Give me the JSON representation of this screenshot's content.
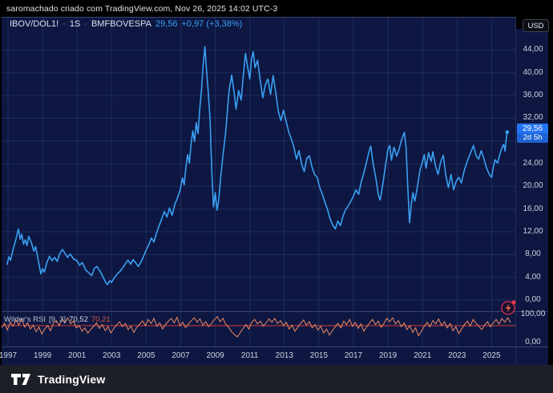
{
  "header": {
    "attribution": "saromachado criado com TradingView.com, Nov 26, 2025 14:02 UTC-3"
  },
  "legend": {
    "symbol": "IBOV/DOL1!",
    "separator": "·",
    "interval": "1S",
    "exchange": "BMFBOVESPA",
    "price": "29,56",
    "change": "+0,97 (+3,38%)"
  },
  "price_scale": {
    "currency": "USD",
    "last_price": "29,56",
    "countdown": "2d 5h"
  },
  "rsi_legend": {
    "title": "Wilder's RSI",
    "params": "[9, 3]",
    "value_main": "70,52",
    "value_signal": "70,21"
  },
  "footer": {
    "brand": "TradingView"
  },
  "colors": {
    "chart_bg": "#0d1742",
    "grid": "#1f2d5f",
    "border": "#3a4368",
    "line_blue": "#3aa0f2",
    "price_chip_blue": "#2574f4",
    "rsi_orange": "#ef8a63",
    "level_red": "#d93a3a"
  },
  "chart_data": {
    "type": "line",
    "title": "IBOV/DOL1! · 1S · BMFBOVESPA",
    "x_ticks": [
      {
        "year": 1997,
        "label": "1997"
      },
      {
        "year": 1999,
        "label": "1999"
      },
      {
        "year": 2001,
        "label": "2001"
      },
      {
        "year": 2003,
        "label": "2003"
      },
      {
        "year": 2005,
        "label": "2005"
      },
      {
        "year": 2007,
        "label": "2007"
      },
      {
        "year": 2009,
        "label": "2009"
      },
      {
        "year": 2011,
        "label": "2011"
      },
      {
        "year": 2013,
        "label": "2013"
      },
      {
        "year": 2015,
        "label": "2015"
      },
      {
        "year": 2017,
        "label": "2017"
      },
      {
        "year": 2019,
        "label": "2019"
      },
      {
        "year": 2021,
        "label": "2021"
      },
      {
        "year": 2023,
        "label": "2023"
      },
      {
        "year": 2025,
        "label": "2025"
      }
    ],
    "y_grid_values": [
      0,
      4,
      8,
      12,
      16,
      20,
      24,
      28,
      32,
      36,
      40,
      44
    ],
    "y_ticks": [
      {
        "value": 44,
        "label": "44,00"
      },
      {
        "value": 40,
        "label": "40,00"
      },
      {
        "value": 36,
        "label": "36,00"
      },
      {
        "value": 32,
        "label": "32,00"
      },
      {
        "value": 24,
        "label": "24,00"
      },
      {
        "value": 20,
        "label": "20,00"
      },
      {
        "value": 16,
        "label": "16,00"
      },
      {
        "value": 12,
        "label": "12,00"
      },
      {
        "value": 8,
        "label": "8,00"
      },
      {
        "value": 4,
        "label": "4,00"
      },
      {
        "value": 0,
        "label": "0,00"
      }
    ],
    "last_point": {
      "year": 2025.9,
      "value": 29.56
    },
    "series": [
      {
        "name": "IBOV/DOL1!",
        "color": "#3aa0f2",
        "points": [
          [
            1996.95,
            6.3
          ],
          [
            1997.05,
            7.6
          ],
          [
            1997.15,
            7.0
          ],
          [
            1997.3,
            9.0
          ],
          [
            1997.45,
            10.6
          ],
          [
            1997.6,
            12.5
          ],
          [
            1997.7,
            10.7
          ],
          [
            1997.8,
            11.6
          ],
          [
            1997.9,
            9.8
          ],
          [
            1998.0,
            10.6
          ],
          [
            1998.1,
            9.6
          ],
          [
            1998.2,
            11.2
          ],
          [
            1998.35,
            10.1
          ],
          [
            1998.5,
            8.6
          ],
          [
            1998.6,
            9.4
          ],
          [
            1998.75,
            7.0
          ],
          [
            1998.9,
            4.6
          ],
          [
            1999.0,
            5.5
          ],
          [
            1999.1,
            4.9
          ],
          [
            1999.25,
            6.6
          ],
          [
            1999.4,
            7.7
          ],
          [
            1999.55,
            6.9
          ],
          [
            1999.7,
            7.5
          ],
          [
            1999.85,
            6.8
          ],
          [
            2000.0,
            8.2
          ],
          [
            2000.15,
            8.9
          ],
          [
            2000.3,
            8.2
          ],
          [
            2000.45,
            7.5
          ],
          [
            2000.6,
            8.1
          ],
          [
            2000.8,
            7.2
          ],
          [
            2001.0,
            6.9
          ],
          [
            2001.15,
            6.1
          ],
          [
            2001.3,
            6.6
          ],
          [
            2001.5,
            5.3
          ],
          [
            2001.7,
            4.7
          ],
          [
            2001.85,
            4.3
          ],
          [
            2002.0,
            5.6
          ],
          [
            2002.15,
            5.9
          ],
          [
            2002.3,
            5.2
          ],
          [
            2002.45,
            4.4
          ],
          [
            2002.6,
            3.4
          ],
          [
            2002.75,
            2.7
          ],
          [
            2002.9,
            3.4
          ],
          [
            2003.0,
            3.1
          ],
          [
            2003.15,
            3.9
          ],
          [
            2003.3,
            4.5
          ],
          [
            2003.5,
            5.1
          ],
          [
            2003.65,
            5.7
          ],
          [
            2003.8,
            6.4
          ],
          [
            2003.95,
            7.0
          ],
          [
            2004.1,
            6.3
          ],
          [
            2004.25,
            7.1
          ],
          [
            2004.4,
            6.5
          ],
          [
            2004.55,
            5.9
          ],
          [
            2004.7,
            6.7
          ],
          [
            2004.85,
            7.7
          ],
          [
            2005.0,
            8.8
          ],
          [
            2005.15,
            9.7
          ],
          [
            2005.3,
            10.9
          ],
          [
            2005.45,
            10.2
          ],
          [
            2005.6,
            11.8
          ],
          [
            2005.75,
            13.1
          ],
          [
            2005.9,
            14.3
          ],
          [
            2006.05,
            15.6
          ],
          [
            2006.2,
            14.6
          ],
          [
            2006.35,
            16.2
          ],
          [
            2006.5,
            14.9
          ],
          [
            2006.65,
            16.8
          ],
          [
            2006.8,
            17.9
          ],
          [
            2006.95,
            19.2
          ],
          [
            2007.1,
            21.5
          ],
          [
            2007.2,
            20.3
          ],
          [
            2007.3,
            23.4
          ],
          [
            2007.4,
            25.6
          ],
          [
            2007.5,
            24.1
          ],
          [
            2007.6,
            27.5
          ],
          [
            2007.7,
            29.8
          ],
          [
            2007.8,
            27.9
          ],
          [
            2007.9,
            31.2
          ],
          [
            2008.0,
            29.3
          ],
          [
            2008.1,
            33.6
          ],
          [
            2008.2,
            36.9
          ],
          [
            2008.3,
            41.5
          ],
          [
            2008.4,
            44.6
          ],
          [
            2008.5,
            40.2
          ],
          [
            2008.6,
            36.4
          ],
          [
            2008.7,
            31.8
          ],
          [
            2008.8,
            22.5
          ],
          [
            2008.9,
            16.4
          ],
          [
            2009.0,
            18.9
          ],
          [
            2009.1,
            15.8
          ],
          [
            2009.2,
            17.6
          ],
          [
            2009.3,
            21.3
          ],
          [
            2009.45,
            25.6
          ],
          [
            2009.6,
            29.4
          ],
          [
            2009.7,
            33.2
          ],
          [
            2009.8,
            36.8
          ],
          [
            2009.95,
            39.6
          ],
          [
            2010.1,
            36.3
          ],
          [
            2010.2,
            33.6
          ],
          [
            2010.35,
            36.9
          ],
          [
            2010.5,
            35.2
          ],
          [
            2010.6,
            38.8
          ],
          [
            2010.75,
            43.4
          ],
          [
            2010.9,
            40.6
          ],
          [
            2011.0,
            38.9
          ],
          [
            2011.1,
            42.6
          ],
          [
            2011.2,
            43.7
          ],
          [
            2011.3,
            40.9
          ],
          [
            2011.45,
            42.2
          ],
          [
            2011.6,
            38.8
          ],
          [
            2011.75,
            35.6
          ],
          [
            2011.9,
            37.9
          ],
          [
            2012.05,
            38.9
          ],
          [
            2012.2,
            36.2
          ],
          [
            2012.35,
            39.5
          ],
          [
            2012.5,
            36.6
          ],
          [
            2012.65,
            33.2
          ],
          [
            2012.8,
            31.6
          ],
          [
            2012.95,
            33.4
          ],
          [
            2013.1,
            31.5
          ],
          [
            2013.25,
            29.6
          ],
          [
            2013.4,
            28.4
          ],
          [
            2013.55,
            26.9
          ],
          [
            2013.7,
            24.8
          ],
          [
            2013.85,
            26.3
          ],
          [
            2014.0,
            23.9
          ],
          [
            2014.15,
            22.6
          ],
          [
            2014.3,
            24.9
          ],
          [
            2014.45,
            25.4
          ],
          [
            2014.6,
            23.4
          ],
          [
            2014.75,
            22.1
          ],
          [
            2014.9,
            21.6
          ],
          [
            2015.05,
            19.8
          ],
          [
            2015.2,
            18.6
          ],
          [
            2015.35,
            17.2
          ],
          [
            2015.5,
            15.9
          ],
          [
            2015.65,
            14.3
          ],
          [
            2015.8,
            13.2
          ],
          [
            2015.95,
            12.5
          ],
          [
            2016.1,
            13.9
          ],
          [
            2016.25,
            13.1
          ],
          [
            2016.4,
            14.8
          ],
          [
            2016.55,
            15.9
          ],
          [
            2016.7,
            16.6
          ],
          [
            2016.85,
            17.4
          ],
          [
            2017.0,
            18.3
          ],
          [
            2017.15,
            19.4
          ],
          [
            2017.3,
            18.6
          ],
          [
            2017.45,
            20.8
          ],
          [
            2017.6,
            22.3
          ],
          [
            2017.75,
            24.2
          ],
          [
            2017.9,
            26.1
          ],
          [
            2018.0,
            27.1
          ],
          [
            2018.15,
            23.8
          ],
          [
            2018.3,
            21.4
          ],
          [
            2018.45,
            18.4
          ],
          [
            2018.55,
            17.6
          ],
          [
            2018.7,
            20.3
          ],
          [
            2018.85,
            23.6
          ],
          [
            2019.0,
            26.6
          ],
          [
            2019.1,
            27.2
          ],
          [
            2019.2,
            24.6
          ],
          [
            2019.35,
            26.9
          ],
          [
            2019.5,
            25.3
          ],
          [
            2019.65,
            26.6
          ],
          [
            2019.8,
            28.3
          ],
          [
            2019.95,
            29.5
          ],
          [
            2020.05,
            26.8
          ],
          [
            2020.15,
            19.6
          ],
          [
            2020.25,
            13.6
          ],
          [
            2020.35,
            16.9
          ],
          [
            2020.45,
            18.9
          ],
          [
            2020.55,
            17.4
          ],
          [
            2020.7,
            19.8
          ],
          [
            2020.85,
            22.9
          ],
          [
            2021.0,
            24.3
          ],
          [
            2021.1,
            25.6
          ],
          [
            2021.2,
            23.2
          ],
          [
            2021.35,
            25.9
          ],
          [
            2021.5,
            24.4
          ],
          [
            2021.6,
            26.1
          ],
          [
            2021.75,
            23.6
          ],
          [
            2021.9,
            22.1
          ],
          [
            2022.05,
            24.3
          ],
          [
            2022.2,
            25.5
          ],
          [
            2022.35,
            21.9
          ],
          [
            2022.5,
            19.8
          ],
          [
            2022.65,
            22.1
          ],
          [
            2022.8,
            19.4
          ],
          [
            2022.95,
            20.9
          ],
          [
            2023.1,
            21.6
          ],
          [
            2023.25,
            20.6
          ],
          [
            2023.4,
            22.6
          ],
          [
            2023.55,
            24.1
          ],
          [
            2023.7,
            25.3
          ],
          [
            2023.85,
            26.4
          ],
          [
            2023.95,
            27.2
          ],
          [
            2024.1,
            25.4
          ],
          [
            2024.25,
            24.8
          ],
          [
            2024.4,
            26.3
          ],
          [
            2024.55,
            24.9
          ],
          [
            2024.7,
            23.3
          ],
          [
            2024.85,
            22.2
          ],
          [
            2025.0,
            21.6
          ],
          [
            2025.1,
            23.4
          ],
          [
            2025.2,
            24.7
          ],
          [
            2025.35,
            24.1
          ],
          [
            2025.5,
            25.9
          ],
          [
            2025.6,
            26.8
          ],
          [
            2025.7,
            27.4
          ],
          [
            2025.78,
            26.2
          ],
          [
            2025.85,
            28.4
          ],
          [
            2025.9,
            29.56
          ]
        ]
      }
    ],
    "rsi": {
      "name": "Wilder's RSI",
      "color": "#ef8a63",
      "level_line": {
        "value": 60,
        "color": "#d93a3a"
      },
      "scale_ticks": [
        {
          "value": 100,
          "label": "100,00"
        },
        {
          "value": 0,
          "label": "0,00"
        }
      ],
      "values": [
        52,
        68,
        45,
        72,
        58,
        80,
        62,
        85,
        55,
        70,
        48,
        62,
        38,
        55,
        30,
        48,
        60,
        42,
        68,
        78,
        60,
        84,
        70,
        88,
        66,
        76,
        52,
        60,
        40,
        52,
        33,
        46,
        58,
        70,
        50,
        64,
        42,
        56,
        34,
        50,
        62,
        74,
        56,
        68,
        46,
        58,
        36,
        53,
        65,
        77,
        60,
        82,
        68,
        86,
        58,
        70,
        48,
        64,
        76,
        86,
        70,
        90,
        60,
        72,
        53,
        66,
        78,
        88,
        72,
        84,
        62,
        74,
        56,
        68,
        82,
        92,
        74,
        86,
        64,
        54,
        38,
        28,
        20,
        36,
        50,
        64,
        48,
        72,
        82,
        66,
        76,
        58,
        70,
        84,
        72,
        86,
        68,
        78,
        60,
        72,
        48,
        62,
        40,
        54,
        68,
        80,
        62,
        74,
        52,
        64,
        44,
        58,
        34,
        48,
        26,
        42,
        56,
        68,
        52,
        76,
        64,
        82,
        58,
        72,
        50,
        66,
        40,
        56,
        70,
        82,
        64,
        76,
        54,
        68,
        86,
        74,
        88,
        66,
        78,
        56,
        70,
        46,
        60,
        36,
        52,
        24,
        40,
        58,
        72,
        56,
        78,
        66,
        84,
        60,
        74,
        52,
        68,
        42,
        56,
        32,
        48,
        64,
        76,
        58,
        82,
        68,
        58,
        46,
        62,
        74,
        56,
        70,
        82,
        66,
        86,
        72,
        88,
        70.52
      ]
    }
  }
}
